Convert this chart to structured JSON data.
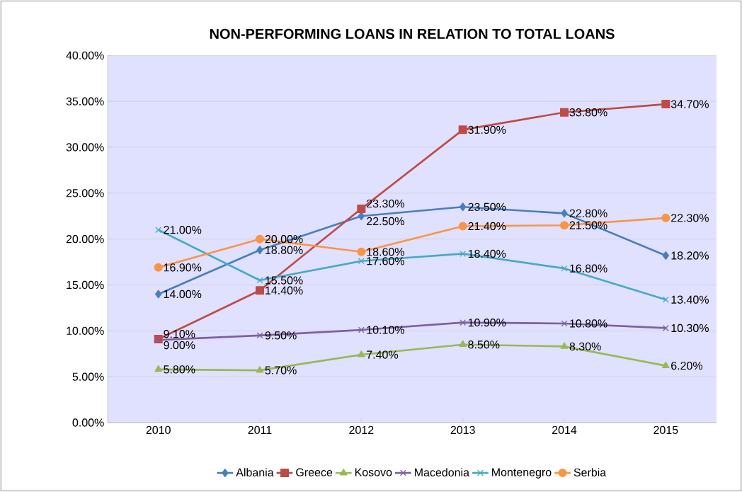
{
  "chart_data": {
    "type": "line",
    "title": "NON-PERFORMING LOANS IN RELATION TO TOTAL LOANS",
    "categories": [
      "2010",
      "2011",
      "2012",
      "2013",
      "2014",
      "2015"
    ],
    "ylim": [
      0,
      40
    ],
    "yticks": [
      {
        "value": 0,
        "label": "0.00%"
      },
      {
        "value": 5,
        "label": "5.00%"
      },
      {
        "value": 10,
        "label": "10.00%"
      },
      {
        "value": 15,
        "label": "15.00%"
      },
      {
        "value": 20,
        "label": "20.00%"
      },
      {
        "value": 25,
        "label": "25.00%"
      },
      {
        "value": 30,
        "label": "30.00%"
      },
      {
        "value": 35,
        "label": "35.00%"
      },
      {
        "value": 40,
        "label": "40.00%"
      }
    ],
    "grid": "y",
    "legend": "bottom",
    "series": [
      {
        "name": "Albania",
        "color": "#4a7ebb",
        "marker": "diamond",
        "values": [
          14.0,
          18.8,
          22.5,
          23.5,
          22.8,
          18.2
        ],
        "value_labels": [
          "14.00%",
          "18.80%",
          "22.50%",
          "23.50%",
          "22.80%",
          "18.20%"
        ]
      },
      {
        "name": "Greece",
        "color": "#be4b48",
        "marker": "square",
        "values": [
          9.1,
          14.4,
          23.3,
          31.9,
          33.8,
          34.7
        ],
        "value_labels": [
          "9.10%",
          "14.40%",
          "23.30%",
          "31.90%",
          "33.80%",
          "34.70%"
        ]
      },
      {
        "name": "Kosovo",
        "color": "#98b954",
        "marker": "triangle",
        "values": [
          5.8,
          5.7,
          7.4,
          8.5,
          8.3,
          6.2
        ],
        "value_labels": [
          "5.80%",
          "5.70%",
          "7.40%",
          "8.50%",
          "8.30%",
          "6.20%"
        ]
      },
      {
        "name": "Macedonia",
        "color": "#7d60a0",
        "marker": "cross",
        "values": [
          9.0,
          9.5,
          10.1,
          10.9,
          10.8,
          10.3
        ],
        "value_labels": [
          "9.00%",
          "9.50%",
          "10.10%",
          "10.90%",
          "10.80%",
          "10.30%"
        ]
      },
      {
        "name": "Montenegro",
        "color": "#46aac5",
        "marker": "cross",
        "values": [
          21.0,
          15.5,
          17.6,
          18.4,
          16.8,
          13.4
        ],
        "value_labels": [
          "21.00%",
          "15.50%",
          "17.60%",
          "18.40%",
          "16.80%",
          "13.40%"
        ]
      },
      {
        "name": "Serbia",
        "color": "#f79646",
        "marker": "circle",
        "values": [
          16.9,
          20.0,
          18.6,
          21.4,
          21.5,
          22.3
        ],
        "value_labels": [
          "16.90%",
          "20.00%",
          "18.60%",
          "21.40%",
          "21.50%",
          "22.30%"
        ]
      }
    ]
  }
}
